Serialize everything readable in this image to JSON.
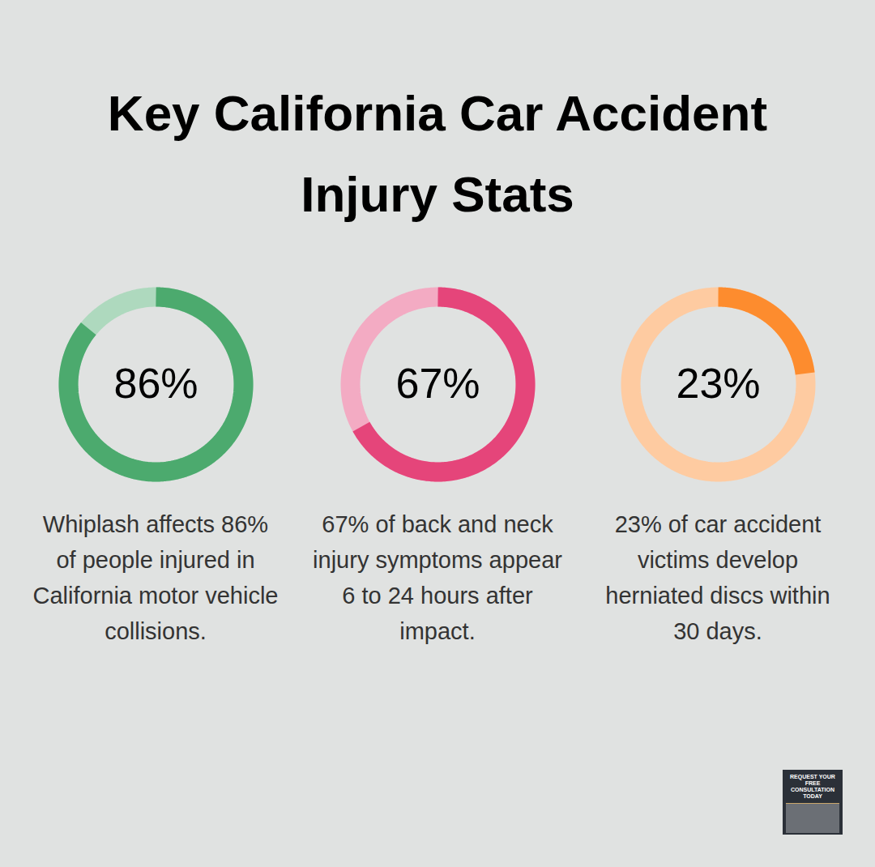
{
  "chart_data": {
    "type": "donut",
    "title": "Key California Car Accident Injury Stats",
    "categories": [
      "Whiplash affects 86% of people injured in California motor vehicle collisions.",
      "67% of back and neck injury symptoms appear 6 to 24 hours after impact.",
      "23% of car accident victims develop herniated discs within 30 days."
    ],
    "values": [
      86,
      67,
      23
    ],
    "value_labels": [
      "86%",
      "67%",
      "23%"
    ],
    "colors": [
      "#4caa6e",
      "#e5457a",
      "#fd8c2e"
    ],
    "ylim": [
      0,
      100
    ],
    "data_labels": true,
    "annotations": [
      "REQUEST YOUR FREE CONSULTATION TODAY"
    ]
  }
}
